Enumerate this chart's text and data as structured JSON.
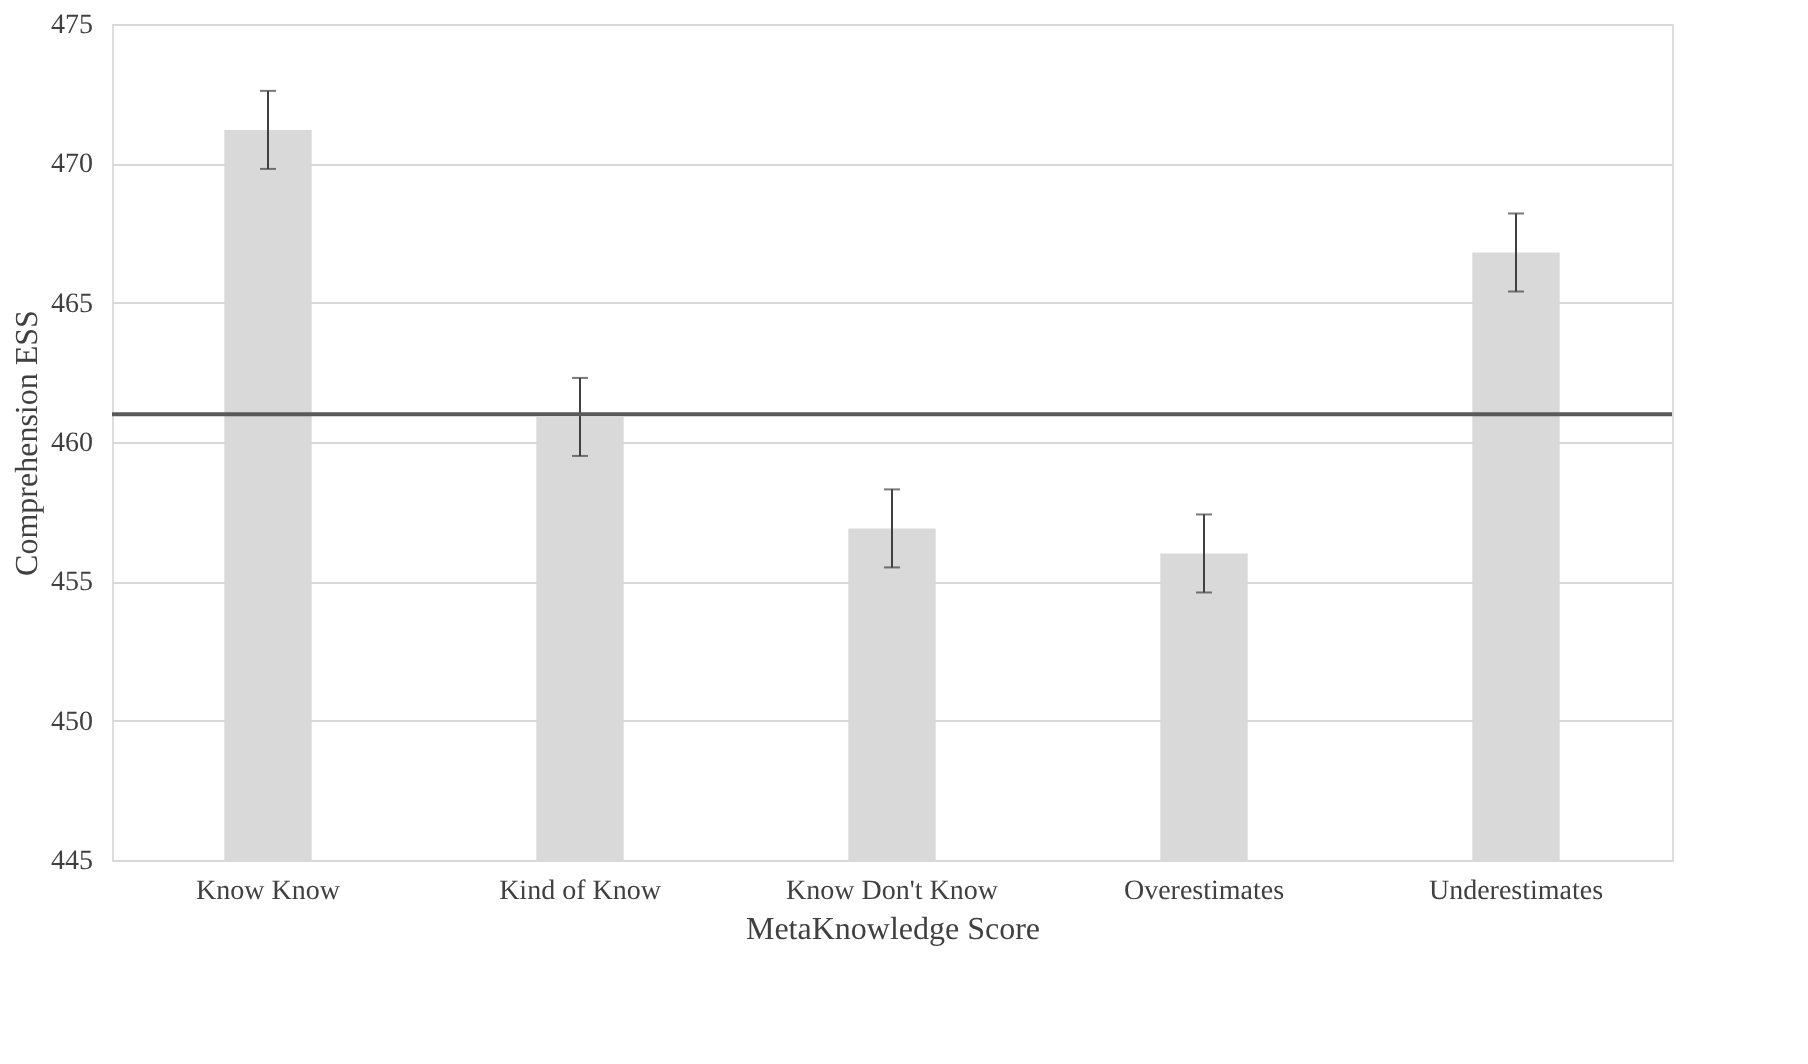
{
  "chart_data": {
    "type": "bar",
    "xlabel": "MetaKnowledge Score",
    "ylabel": "Comprehension ESS",
    "categories": [
      "Know Know",
      "Kind of Know",
      "Know Don't Know",
      "Overestimates",
      "Underestimates"
    ],
    "values": [
      471.2,
      460.9,
      456.9,
      456.0,
      466.8
    ],
    "errors": [
      1.4,
      1.4,
      1.4,
      1.4,
      1.4
    ],
    "color": "#d9d9d9",
    "ylim": [
      445,
      475
    ],
    "yticks": [
      445,
      450,
      455,
      460,
      465,
      470,
      475
    ],
    "grid": "y",
    "ref_lines": [
      {
        "axis": "y",
        "value": 461.0,
        "color": "#595959"
      }
    ]
  }
}
